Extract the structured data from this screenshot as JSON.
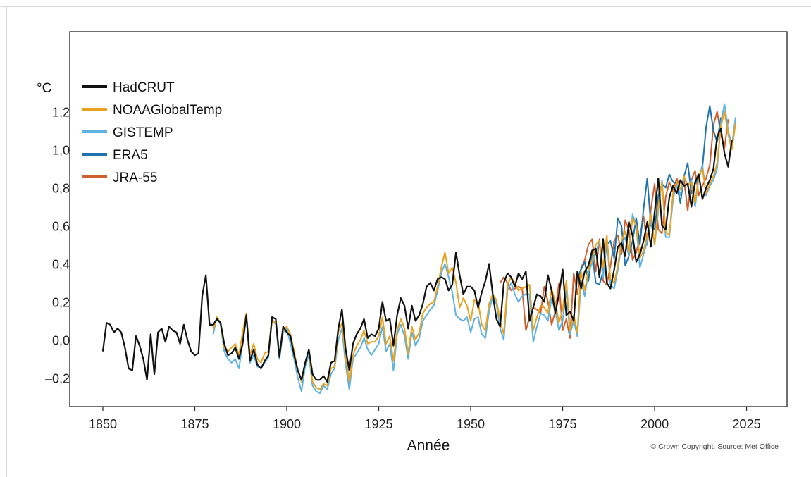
{
  "chart_data": {
    "type": "line",
    "xlabel": "Année",
    "ylabel": "°C",
    "xlim": [
      1841,
      2036
    ],
    "ylim": [
      -0.35,
      1.62
    ],
    "x_ticks": [
      1850,
      1875,
      1900,
      1925,
      1950,
      1975,
      2000,
      2025
    ],
    "x_tick_labels": [
      "1850",
      "1875",
      "1900",
      "1925",
      "1950",
      "1975",
      "2000",
      "2025"
    ],
    "y_ticks": [
      -0.2,
      0.0,
      0.2,
      0.4,
      0.6,
      0.8,
      1.0,
      1.2
    ],
    "y_tick_labels": [
      "–0,2",
      "0,0",
      "0,2",
      "0,4",
      "0,6",
      "0,8",
      "1,0",
      "1,2"
    ],
    "grid": false,
    "legend_position": "top-left",
    "credit": "© Crown Copyright. Source: Met Office",
    "series": [
      {
        "name": "HadCRUT",
        "color": "#111111",
        "start_year": 1850,
        "values": [
          -0.06,
          0.09,
          0.08,
          0.04,
          0.06,
          0.04,
          -0.04,
          -0.15,
          -0.16,
          0.02,
          -0.03,
          -0.1,
          -0.21,
          0.03,
          -0.18,
          0.04,
          0.06,
          -0.01,
          0.07,
          0.05,
          0.04,
          -0.02,
          0.08,
          0.0,
          -0.06,
          -0.08,
          -0.07,
          0.23,
          0.34,
          0.08,
          0.08,
          0.11,
          0.09,
          -0.02,
          -0.08,
          -0.07,
          -0.04,
          -0.1,
          -0.02,
          0.13,
          -0.11,
          -0.05,
          -0.13,
          -0.15,
          -0.11,
          -0.08,
          0.12,
          0.11,
          -0.09,
          0.07,
          0.04,
          0.02,
          -0.08,
          -0.16,
          -0.21,
          -0.12,
          -0.05,
          -0.18,
          -0.21,
          -0.21,
          -0.19,
          -0.22,
          -0.12,
          -0.11,
          0.06,
          0.16,
          -0.05,
          -0.16,
          -0.02,
          0.03,
          0.06,
          0.11,
          0.01,
          0.03,
          0.02,
          0.06,
          0.2,
          0.1,
          0.11,
          -0.03,
          0.13,
          0.22,
          0.18,
          0.06,
          0.18,
          0.1,
          0.13,
          0.19,
          0.28,
          0.3,
          0.26,
          0.32,
          0.33,
          0.32,
          0.26,
          0.29,
          0.46,
          0.34,
          0.24,
          0.28,
          0.28,
          0.26,
          0.17,
          0.25,
          0.31,
          0.4,
          0.24,
          0.11,
          0.07,
          0.3,
          0.35,
          0.33,
          0.28,
          0.35,
          0.32,
          0.36,
          0.1,
          0.17,
          0.24,
          0.23,
          0.2,
          0.34,
          0.26,
          0.14,
          0.24,
          0.37,
          0.13,
          0.15,
          0.1,
          0.36,
          0.27,
          0.36,
          0.39,
          0.47,
          0.48,
          0.33,
          0.53,
          0.3,
          0.27,
          0.37,
          0.49,
          0.51,
          0.44,
          0.62,
          0.55,
          0.41,
          0.45,
          0.52,
          0.62,
          0.49,
          0.67,
          0.85,
          0.6,
          0.58,
          0.75,
          0.81,
          0.77,
          0.84,
          0.81,
          0.82,
          0.7,
          0.83,
          0.87,
          0.74,
          0.8,
          0.84,
          0.9,
          1.07,
          1.11,
          0.98,
          0.91,
          1.05
        ]
      },
      {
        "name": "NOAAGlobalTemp",
        "color": "#e8a21e",
        "start_year": 1880,
        "values": [
          0.05,
          0.12,
          0.09,
          -0.04,
          -0.06,
          -0.04,
          -0.02,
          -0.08,
          0.04,
          0.14,
          -0.08,
          -0.02,
          -0.1,
          -0.12,
          -0.07,
          -0.06,
          0.1,
          0.09,
          -0.08,
          0.05,
          0.07,
          0.03,
          -0.06,
          -0.16,
          -0.22,
          -0.12,
          -0.05,
          -0.22,
          -0.25,
          -0.26,
          -0.23,
          -0.24,
          -0.15,
          -0.14,
          0.04,
          0.09,
          -0.09,
          -0.22,
          -0.08,
          -0.03,
          0.0,
          0.05,
          -0.02,
          -0.01,
          -0.01,
          0.02,
          0.12,
          -0.02,
          0.02,
          -0.11,
          0.05,
          0.11,
          0.06,
          -0.07,
          0.07,
          0.0,
          0.04,
          0.14,
          0.17,
          0.19,
          0.2,
          0.28,
          0.38,
          0.46,
          0.35,
          0.38,
          0.3,
          0.17,
          0.22,
          0.18,
          0.1,
          0.21,
          0.2,
          0.08,
          0.05,
          0.19,
          0.24,
          0.21,
          0.1,
          0.03,
          0.29,
          0.33,
          0.3,
          0.26,
          0.27,
          0.28,
          0.29,
          0.05,
          0.12,
          0.18,
          0.17,
          0.14,
          0.27,
          0.2,
          0.09,
          0.16,
          0.31,
          0.05,
          0.13,
          0.04,
          0.36,
          0.26,
          0.37,
          0.42,
          0.5,
          0.52,
          0.38,
          0.55,
          0.32,
          0.3,
          0.39,
          0.52,
          0.57,
          0.46,
          0.64,
          0.6,
          0.43,
          0.47,
          0.55,
          0.66,
          0.5,
          0.7,
          0.83,
          0.57,
          0.55,
          0.77,
          0.83,
          0.79,
          0.86,
          0.81,
          0.83,
          0.72,
          0.86,
          0.9,
          0.77,
          0.82,
          0.86,
          0.93,
          1.12,
          1.2,
          1.08,
          1.0,
          1.14
        ]
      },
      {
        "name": "GISTEMP",
        "color": "#5eb2e4",
        "start_year": 1880,
        "values": [
          0.03,
          0.12,
          0.08,
          -0.06,
          -0.1,
          -0.12,
          -0.1,
          -0.15,
          -0.02,
          0.12,
          -0.12,
          -0.08,
          -0.14,
          -0.15,
          -0.12,
          -0.09,
          0.11,
          0.08,
          -0.1,
          0.04,
          0.06,
          -0.02,
          -0.1,
          -0.2,
          -0.27,
          -0.14,
          -0.08,
          -0.24,
          -0.27,
          -0.28,
          -0.24,
          -0.26,
          -0.18,
          -0.15,
          0.0,
          0.06,
          -0.13,
          -0.26,
          -0.1,
          -0.07,
          -0.04,
          0.01,
          -0.05,
          -0.08,
          -0.05,
          -0.02,
          0.07,
          -0.06,
          -0.02,
          -0.16,
          0.03,
          0.08,
          0.02,
          -0.1,
          0.04,
          -0.03,
          0.01,
          0.1,
          0.13,
          0.16,
          0.18,
          0.26,
          0.35,
          0.4,
          0.33,
          0.25,
          0.13,
          0.11,
          0.1,
          0.12,
          0.04,
          0.11,
          0.12,
          0.03,
          0.01,
          0.15,
          0.23,
          0.19,
          0.06,
          0.0,
          0.26,
          0.3,
          0.24,
          0.2,
          0.23,
          0.24,
          0.24,
          -0.01,
          0.07,
          0.14,
          0.13,
          0.1,
          0.22,
          0.15,
          0.05,
          0.1,
          0.26,
          0.03,
          0.1,
          0.02,
          0.31,
          0.23,
          0.36,
          0.4,
          0.46,
          0.52,
          0.33,
          0.53,
          0.29,
          0.27,
          0.37,
          0.5,
          0.54,
          0.44,
          0.66,
          0.6,
          0.38,
          0.45,
          0.52,
          0.63,
          0.5,
          0.68,
          0.84,
          0.54,
          0.54,
          0.74,
          0.82,
          0.76,
          0.85,
          0.81,
          0.84,
          0.7,
          0.85,
          0.92,
          0.76,
          0.81,
          0.84,
          0.9,
          1.14,
          1.24,
          1.1,
          1.02,
          1.17
        ]
      },
      {
        "name": "ERA5",
        "color": "#1f73ad",
        "start_year": 1979,
        "values": [
          0.33,
          0.37,
          0.41,
          0.31,
          0.46,
          0.3,
          0.29,
          0.36,
          0.5,
          0.52,
          0.43,
          0.64,
          0.6,
          0.39,
          0.44,
          0.52,
          0.64,
          0.5,
          0.69,
          0.85,
          0.6,
          0.58,
          0.76,
          0.82,
          0.8,
          0.87,
          0.83,
          0.82,
          0.72,
          0.86,
          0.93,
          0.77,
          0.82,
          0.85,
          0.91,
          1.12,
          1.23,
          1.1,
          1.04,
          1.17
        ]
      },
      {
        "name": "JRA-55",
        "color": "#d0612f",
        "start_year": 1958,
        "values": [
          0.3,
          0.33,
          0.3,
          0.26,
          0.27,
          0.28,
          0.27,
          0.05,
          0.12,
          0.17,
          0.16,
          0.14,
          0.28,
          0.2,
          0.08,
          0.15,
          0.3,
          0.05,
          0.11,
          0.01,
          0.35,
          0.24,
          0.38,
          0.42,
          0.5,
          0.53,
          0.36,
          0.53,
          0.31,
          0.29,
          0.39,
          0.52,
          0.55,
          0.45,
          0.63,
          0.58,
          0.42,
          0.46,
          0.54,
          0.65,
          0.5,
          0.69,
          0.82,
          0.58,
          0.56,
          0.75,
          0.83,
          0.78,
          0.85,
          0.79,
          0.84,
          0.68,
          0.84,
          0.89,
          0.76,
          0.81,
          0.85,
          0.92,
          1.13,
          1.2,
          1.08,
          1.01,
          1.16
        ]
      }
    ]
  }
}
